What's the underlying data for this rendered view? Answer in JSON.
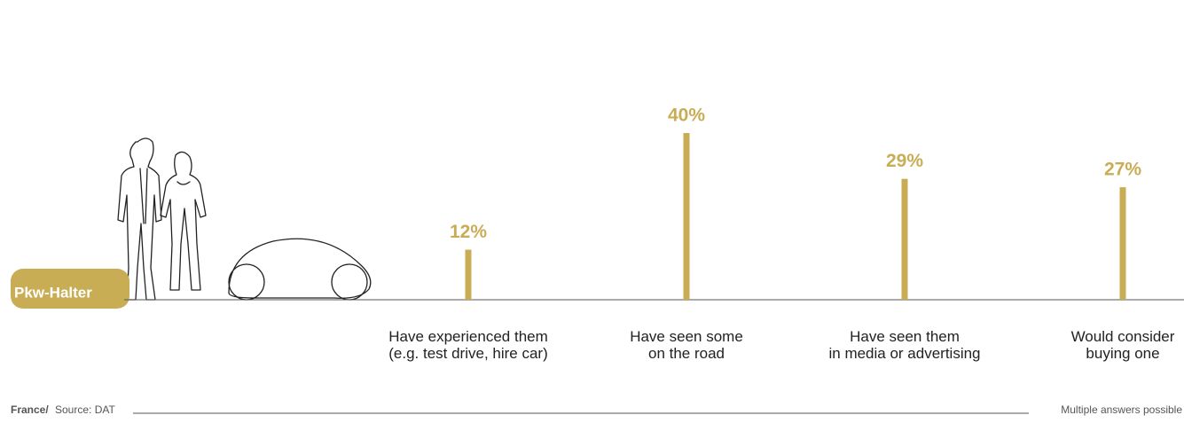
{
  "chart_data": {
    "type": "bar",
    "group_label": "Pkw-Halter",
    "categories": [
      [
        "Have experienced them",
        "(e.g. test drive, hire car)"
      ],
      [
        "Have seen some",
        "on the road"
      ],
      [
        "Have seen them",
        "in media or advertising"
      ],
      [
        "Would consider",
        "buying one"
      ]
    ],
    "values": [
      12,
      40,
      29,
      27
    ],
    "value_labels": [
      "12%",
      "40%",
      "29%",
      "27%"
    ],
    "color": "#c9ad55",
    "ylim": [
      0,
      40
    ],
    "country": "France/",
    "source": "Source: DAT",
    "note": "Multiple answers possible"
  }
}
